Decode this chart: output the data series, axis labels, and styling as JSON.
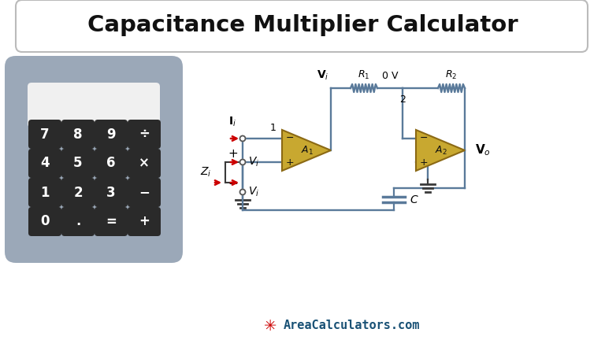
{
  "title": "Capacitance Multiplier Calculator",
  "title_fontsize": 21,
  "background_color": "#ffffff",
  "footer_text": "AreaCalculators.com",
  "footer_star_color": "#cc0000",
  "footer_text_color": "#1a5276",
  "calc_body_color": "#9ba8b8",
  "calc_btn_color": "#2a2a2a",
  "op_amp_color": "#c8a830",
  "op_amp_edge": "#8B6914",
  "line_color": "#3a3a3a",
  "red_color": "#cc0000",
  "circuit_line_color": "#5a7a9a",
  "button_rows": [
    [
      "7",
      "8",
      "9",
      "÷"
    ],
    [
      "4",
      "5",
      "6",
      "×"
    ],
    [
      "1",
      "2",
      "3",
      "−"
    ],
    [
      "0",
      ".",
      "=",
      "+"
    ]
  ]
}
